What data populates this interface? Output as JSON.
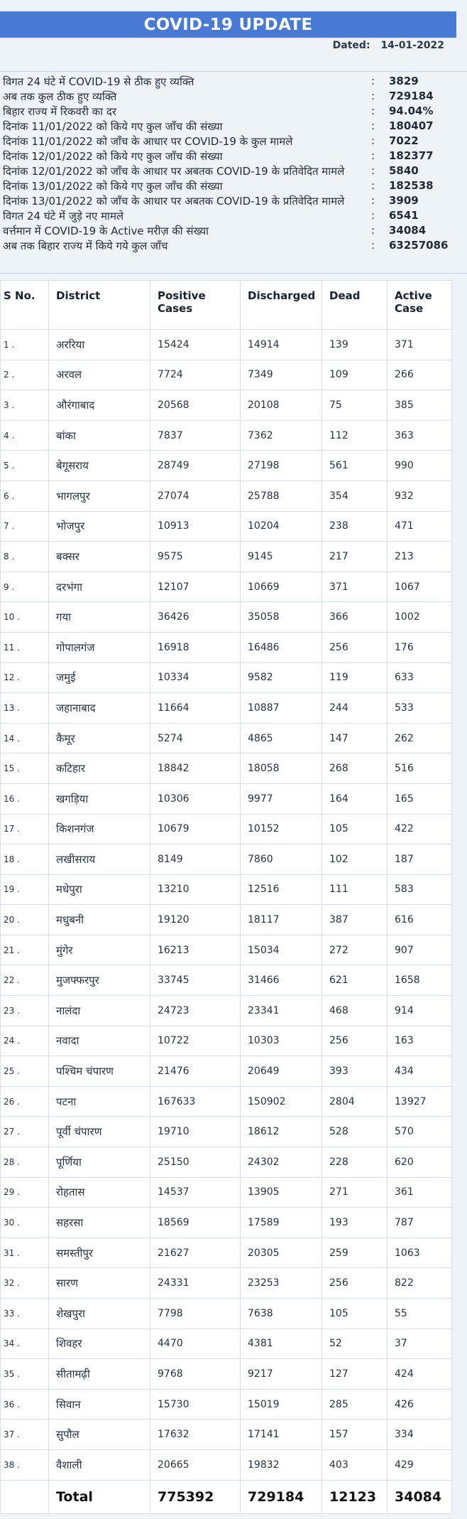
{
  "title": "COVID-19 UPDATE",
  "dated_label": "Dated:",
  "dated_value": "14-01-2022",
  "summary": [
    {
      "label": "विगत 24 घंटे में COVID-19 से ठीक हुए व्यक्ति",
      "value": "3829"
    },
    {
      "label": "अब तक कुल ठीक हुए व्यक्ति",
      "value": "729184"
    },
    {
      "label": "बिहार राज्य में रिकवरी का दर",
      "value": "94.04%"
    },
    {
      "label": "दिनांक 11/01/2022 को किये गए कुल जाँच की संख्या",
      "value": "180407"
    },
    {
      "label": "दिनांक 11/01/2022 को जाँच के आधार पर COVID-19 के कुल मामले",
      "value": "7022"
    },
    {
      "label": "दिनांक 12/01/2022 को किये गए कुल जाँच की संख्या",
      "value": "182377"
    },
    {
      "label": "दिनांक 12/01/2022 को जाँच के आधार पर अबतक COVID-19 के प्रतिवेदित मामले",
      "value": "5840"
    },
    {
      "label": "दिनांक 13/01/2022 को किये गए कुल जाँच की संख्या",
      "value": "182538"
    },
    {
      "label": "दिनांक 13/01/2022 को जाँच के आधार पर अबतक COVID-19 के प्रतिवेदित मामले",
      "value": "3909"
    },
    {
      "label": "विगत 24 घंटे में जुड़े नए मामले",
      "value": "6541"
    },
    {
      "label": "वर्त्तमान में COVID-19 के Active मरीज़ की संख्या",
      "value": "34084"
    },
    {
      "label": "अब तक बिहार राज्य में किये गये कुल जाँच",
      "value": "63257086"
    }
  ],
  "table": {
    "headers": {
      "sno": "S No.",
      "district": "District",
      "positive_1": "Positive",
      "positive_2": "Cases",
      "discharged": "Discharged",
      "dead": "Dead",
      "active_1": "Active",
      "active_2": "Case"
    },
    "rows": [
      [
        "1 .",
        "अररिया",
        "15424",
        "14914",
        "139",
        "371"
      ],
      [
        "2 .",
        "अरवल",
        "7724",
        "7349",
        "109",
        "266"
      ],
      [
        "3 .",
        "औरंगाबाद",
        "20568",
        "20108",
        "75",
        "385"
      ],
      [
        "4 .",
        "बांका",
        "7837",
        "7362",
        "112",
        "363"
      ],
      [
        "5 .",
        "बेगूसराय",
        "28749",
        "27198",
        "561",
        "990"
      ],
      [
        "6 .",
        "भागलपुर",
        "27074",
        "25788",
        "354",
        "932"
      ],
      [
        "7 .",
        "भोजपुर",
        "10913",
        "10204",
        "238",
        "471"
      ],
      [
        "8 .",
        "बक्सर",
        "9575",
        "9145",
        "217",
        "213"
      ],
      [
        "9 .",
        "दरभंगा",
        "12107",
        "10669",
        "371",
        "1067"
      ],
      [
        "10 .",
        "गया",
        "36426",
        "35058",
        "366",
        "1002"
      ],
      [
        "11 .",
        "गोपालगंज",
        "16918",
        "16486",
        "256",
        "176"
      ],
      [
        "12 .",
        "जमुई",
        "10334",
        "9582",
        "119",
        "633"
      ],
      [
        "13 .",
        "जहानाबाद",
        "11664",
        "10887",
        "244",
        "533"
      ],
      [
        "14 .",
        "कैमूर",
        "5274",
        "4865",
        "147",
        "262"
      ],
      [
        "15 .",
        "कटिहार",
        "18842",
        "18058",
        "268",
        "516"
      ],
      [
        "16 .",
        "खगड़िया",
        "10306",
        "9977",
        "164",
        "165"
      ],
      [
        "17 .",
        "किशनगंज",
        "10679",
        "10152",
        "105",
        "422"
      ],
      [
        "18 .",
        "लखीसराय",
        "8149",
        "7860",
        "102",
        "187"
      ],
      [
        "19 .",
        "मधेपुरा",
        "13210",
        "12516",
        "111",
        "583"
      ],
      [
        "20 .",
        "मधुबनी",
        "19120",
        "18117",
        "387",
        "616"
      ],
      [
        "21 .",
        "मुंगेर",
        "16213",
        "15034",
        "272",
        "907"
      ],
      [
        "22 .",
        "मुजफ्फरपुर",
        "33745",
        "31466",
        "621",
        "1658"
      ],
      [
        "23 .",
        "नालंदा",
        "24723",
        "23341",
        "468",
        "914"
      ],
      [
        "24 .",
        "नवादा",
        "10722",
        "10303",
        "256",
        "163"
      ],
      [
        "25 .",
        "पश्चिम चंपारण",
        "21476",
        "20649",
        "393",
        "434"
      ],
      [
        "26 .",
        "पटना",
        "167633",
        "150902",
        "2804",
        "13927"
      ],
      [
        "27 .",
        "पूर्वी चंपारण",
        "19710",
        "18612",
        "528",
        "570"
      ],
      [
        "28 .",
        "पूर्णिया",
        "25150",
        "24302",
        "228",
        "620"
      ],
      [
        "29 .",
        "रोहतास",
        "14537",
        "13905",
        "271",
        "361"
      ],
      [
        "30 .",
        "सहरसा",
        "18569",
        "17589",
        "193",
        "787"
      ],
      [
        "31 .",
        "समस्तीपुर",
        "21627",
        "20305",
        "259",
        "1063"
      ],
      [
        "32 .",
        "सारण",
        "24331",
        "23253",
        "256",
        "822"
      ],
      [
        "33 .",
        "शेखपुरा",
        "7798",
        "7638",
        "105",
        "55"
      ],
      [
        "34 .",
        "शिवहर",
        "4470",
        "4381",
        "52",
        "37"
      ],
      [
        "35 .",
        "सीतामढ़ी",
        "9768",
        "9217",
        "127",
        "424"
      ],
      [
        "36 .",
        "सिवान",
        "15730",
        "15019",
        "285",
        "426"
      ],
      [
        "37 .",
        "सुपौल",
        "17632",
        "17141",
        "157",
        "334"
      ],
      [
        "38 .",
        "वैशाली",
        "20665",
        "19832",
        "403",
        "429"
      ]
    ],
    "total": [
      "",
      "Total",
      "775392",
      "729184",
      "12123",
      "34084"
    ]
  }
}
